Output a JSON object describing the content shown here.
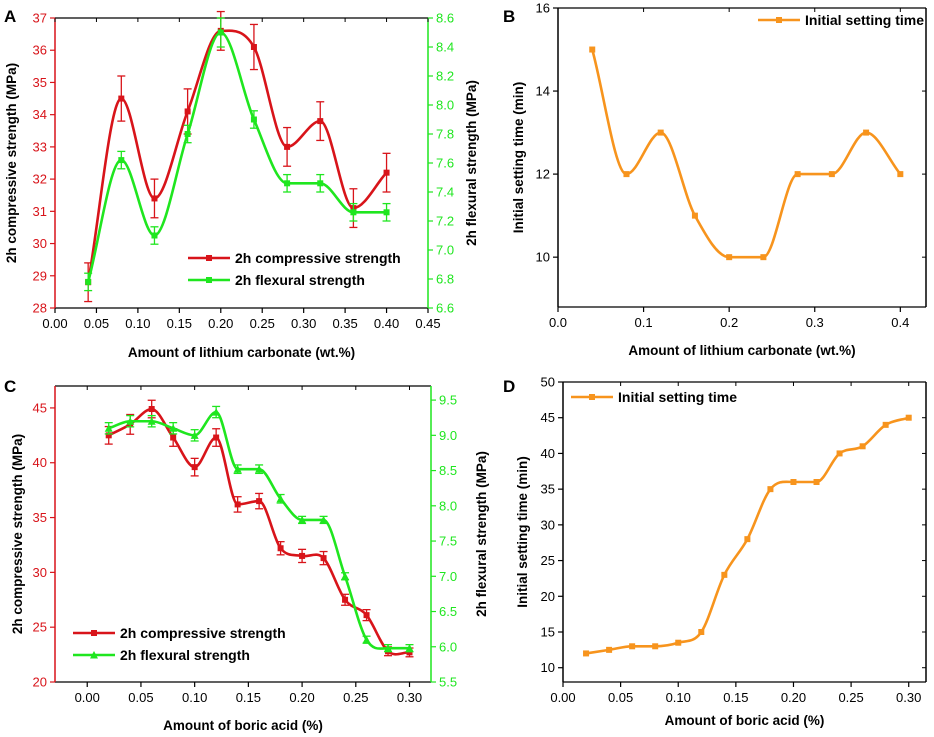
{
  "colors": {
    "red": "#d8141a",
    "green": "#1fe61f",
    "orange": "#f7941d",
    "axis": "#000000"
  },
  "chart_data": [
    {
      "id": "A",
      "type": "line",
      "panel_label": "A",
      "xlabel": "Amount of lithium carbonate (wt.%)",
      "ylabel": "2h compressive strength (MPa)",
      "y2label": "2h flexural strength (MPa)",
      "xlim": [
        0.0,
        0.45
      ],
      "ylim": [
        28,
        37
      ],
      "y2lim": [
        6.6,
        8.6
      ],
      "x_ticks": [
        "0.00",
        "0.05",
        "0.10",
        "0.15",
        "0.20",
        "0.25",
        "0.30",
        "0.35",
        "0.40",
        "0.45"
      ],
      "y_ticks": [
        "28",
        "29",
        "30",
        "31",
        "32",
        "33",
        "34",
        "35",
        "36",
        "37"
      ],
      "y2_ticks": [
        "6.6",
        "6.8",
        "7.0",
        "7.2",
        "7.4",
        "7.6",
        "7.8",
        "8.0",
        "8.2",
        "8.4",
        "8.6"
      ],
      "legend_position": "bottom-right",
      "series": [
        {
          "name": "2h compressive strength",
          "axis": "left",
          "color": "red",
          "marker": "square",
          "x": [
            0.04,
            0.08,
            0.12,
            0.16,
            0.2,
            0.24,
            0.28,
            0.32,
            0.36,
            0.4
          ],
          "values": [
            28.8,
            34.5,
            31.4,
            34.1,
            36.6,
            36.1,
            33.0,
            33.8,
            31.1,
            32.2
          ],
          "errors": [
            0.6,
            0.7,
            0.6,
            0.7,
            0.6,
            0.7,
            0.6,
            0.6,
            0.6,
            0.6
          ]
        },
        {
          "name": "2h flexural strength",
          "axis": "right",
          "color": "green",
          "marker": "square",
          "x": [
            0.04,
            0.08,
            0.12,
            0.16,
            0.2,
            0.24,
            0.28,
            0.32,
            0.36,
            0.4
          ],
          "values": [
            6.78,
            7.62,
            7.1,
            7.8,
            8.5,
            7.9,
            7.46,
            7.46,
            7.26,
            7.26
          ],
          "errors": [
            0.06,
            0.06,
            0.06,
            0.06,
            0.1,
            0.06,
            0.06,
            0.06,
            0.06,
            0.06
          ]
        }
      ]
    },
    {
      "id": "B",
      "type": "line",
      "panel_label": "B",
      "xlabel": "Amount of lithium carbonate (wt.%)",
      "ylabel": "Initial setting time (min)",
      "xlim": [
        0.0,
        0.43
      ],
      "ylim": [
        8.8,
        16
      ],
      "x_ticks": [
        "0.0",
        "0.1",
        "0.2",
        "0.3",
        "0.4"
      ],
      "y_ticks": [
        "10",
        "12",
        "14",
        "16"
      ],
      "legend_position": "top-right",
      "series": [
        {
          "name": "Initial setting time",
          "color": "orange",
          "marker": "square",
          "x": [
            0.04,
            0.08,
            0.12,
            0.16,
            0.2,
            0.24,
            0.28,
            0.32,
            0.36,
            0.4
          ],
          "values": [
            15,
            12,
            13,
            11,
            10,
            10,
            12,
            12,
            13,
            12
          ]
        }
      ]
    },
    {
      "id": "C",
      "type": "line",
      "panel_label": "C",
      "xlabel": "Amount of boric acid (%)",
      "ylabel": "2h compressive strength (MPa)",
      "y2label": "2h flexural strength (MPa)",
      "xlim": [
        -0.03,
        0.32
      ],
      "ylim": [
        20,
        47
      ],
      "y2lim": [
        5.5,
        9.7
      ],
      "x_ticks": [
        "0.00",
        "0.05",
        "0.10",
        "0.15",
        "0.20",
        "0.25",
        "0.30"
      ],
      "y_ticks": [
        "20",
        "25",
        "30",
        "35",
        "40",
        "45"
      ],
      "y2_ticks": [
        "5.5",
        "6.0",
        "6.5",
        "7.0",
        "7.5",
        "8.0",
        "8.5",
        "9.0",
        "9.5"
      ],
      "legend_position": "bottom-left",
      "series": [
        {
          "name": "2h compressive strength",
          "axis": "left",
          "color": "red",
          "marker": "square",
          "x": [
            0.02,
            0.04,
            0.06,
            0.08,
            0.1,
            0.12,
            0.14,
            0.16,
            0.18,
            0.2,
            0.22,
            0.24,
            0.26,
            0.28,
            0.3
          ],
          "values": [
            42.5,
            43.5,
            44.9,
            42.3,
            39.6,
            42.3,
            36.2,
            36.5,
            32.2,
            31.5,
            31.3,
            27.5,
            26.1,
            22.8,
            22.7
          ],
          "errors": [
            0.8,
            0.9,
            0.8,
            0.8,
            0.8,
            0.8,
            0.7,
            0.7,
            0.6,
            0.6,
            0.6,
            0.5,
            0.5,
            0.4,
            0.4
          ]
        },
        {
          "name": "2h flexural strength",
          "axis": "right",
          "color": "green",
          "marker": "triangle",
          "x": [
            0.02,
            0.04,
            0.06,
            0.08,
            0.1,
            0.12,
            0.14,
            0.16,
            0.18,
            0.2,
            0.22,
            0.24,
            0.26,
            0.28,
            0.3
          ],
          "values": [
            9.1,
            9.2,
            9.2,
            9.1,
            9.0,
            9.33,
            8.52,
            8.52,
            8.1,
            7.8,
            7.8,
            7.0,
            6.1,
            5.98,
            5.98
          ],
          "errors": [
            0.08,
            0.08,
            0.08,
            0.08,
            0.08,
            0.08,
            0.06,
            0.06,
            0.06,
            0.05,
            0.05,
            0.05,
            0.05,
            0.05,
            0.05
          ]
        }
      ]
    },
    {
      "id": "D",
      "type": "line",
      "panel_label": "D",
      "xlabel": "Amount of boric acid (%)",
      "ylabel": "Initial setting time (min)",
      "xlim": [
        0.0,
        0.315
      ],
      "ylim": [
        8,
        50
      ],
      "x_ticks": [
        "0.00",
        "0.05",
        "0.10",
        "0.15",
        "0.20",
        "0.25",
        "0.30"
      ],
      "y_ticks": [
        "10",
        "15",
        "20",
        "25",
        "30",
        "35",
        "40",
        "45",
        "50"
      ],
      "legend_position": "top-left",
      "series": [
        {
          "name": "Initial setting time",
          "color": "orange",
          "marker": "square",
          "x": [
            0.02,
            0.04,
            0.06,
            0.08,
            0.1,
            0.12,
            0.14,
            0.16,
            0.18,
            0.2,
            0.22,
            0.24,
            0.26,
            0.28,
            0.3
          ],
          "values": [
            12,
            12.5,
            13,
            13,
            13.5,
            15,
            23,
            28,
            35,
            36,
            36,
            40,
            41,
            44,
            45
          ]
        }
      ]
    }
  ]
}
